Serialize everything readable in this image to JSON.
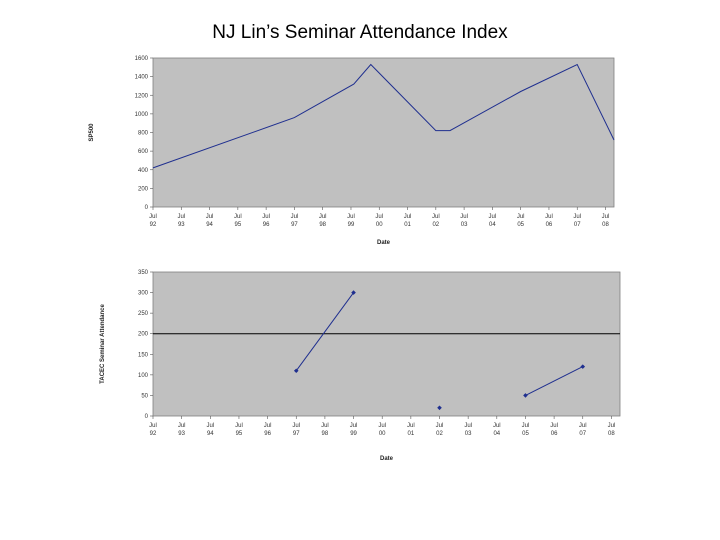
{
  "page": {
    "title": "NJ Lin’s Seminar Attendance Index"
  },
  "chart_data": [
    {
      "id": "sp500",
      "type": "line",
      "xlabel": "Date",
      "ylabel": "SP500",
      "ylim": [
        0,
        1600
      ],
      "yticks": [
        0,
        200,
        400,
        600,
        800,
        1000,
        1200,
        1400,
        1600
      ],
      "xlim": [
        1992.5,
        2008.8
      ],
      "xticks": [
        {
          "x": 1992.5,
          "line1": "Jul",
          "line2": "92"
        },
        {
          "x": 1993.5,
          "line1": "Jul",
          "line2": "93"
        },
        {
          "x": 1994.5,
          "line1": "Jul",
          "line2": "94"
        },
        {
          "x": 1995.5,
          "line1": "Jul",
          "line2": "95"
        },
        {
          "x": 1996.5,
          "line1": "Jul",
          "line2": "96"
        },
        {
          "x": 1997.5,
          "line1": "Jul",
          "line2": "97"
        },
        {
          "x": 1998.5,
          "line1": "Jul",
          "line2": "98"
        },
        {
          "x": 1999.5,
          "line1": "Jul",
          "line2": "99"
        },
        {
          "x": 2000.5,
          "line1": "Jul",
          "line2": "00"
        },
        {
          "x": 2001.5,
          "line1": "Jul",
          "line2": "01"
        },
        {
          "x": 2002.5,
          "line1": "Jul",
          "line2": "02"
        },
        {
          "x": 2003.5,
          "line1": "Jul",
          "line2": "03"
        },
        {
          "x": 2004.5,
          "line1": "Jul",
          "line2": "04"
        },
        {
          "x": 2005.5,
          "line1": "Jul",
          "line2": "05"
        },
        {
          "x": 2006.5,
          "line1": "Jul",
          "line2": "06"
        },
        {
          "x": 2007.5,
          "line1": "Jul",
          "line2": "07"
        },
        {
          "x": 2008.5,
          "line1": "Jul",
          "line2": "08"
        }
      ],
      "series": [
        {
          "color": "#1f2f8f",
          "marker": "none",
          "points": [
            {
              "x": 1992.5,
              "y": 420
            },
            {
              "x": 1997.5,
              "y": 960
            },
            {
              "x": 1999.6,
              "y": 1320
            },
            {
              "x": 2000.2,
              "y": 1530
            },
            {
              "x": 2002.5,
              "y": 820
            },
            {
              "x": 2003.0,
              "y": 820
            },
            {
              "x": 2005.5,
              "y": 1240
            },
            {
              "x": 2007.5,
              "y": 1530
            },
            {
              "x": 2008.8,
              "y": 720
            }
          ]
        }
      ],
      "reference_lines": [],
      "plot_bg": "#c0c0c0",
      "grid": false
    },
    {
      "id": "attendance",
      "type": "line",
      "xlabel": "Date",
      "ylabel": "TACEC Seminar Attendance",
      "ylim": [
        0,
        350
      ],
      "yticks": [
        0,
        50,
        100,
        150,
        200,
        250,
        300,
        350
      ],
      "xlim": [
        1992.5,
        2008.8
      ],
      "xticks": [
        {
          "x": 1992.5,
          "line1": "Jul",
          "line2": "92"
        },
        {
          "x": 1993.5,
          "line1": "Jul",
          "line2": "93"
        },
        {
          "x": 1994.5,
          "line1": "Jul",
          "line2": "94"
        },
        {
          "x": 1995.5,
          "line1": "Jul",
          "line2": "95"
        },
        {
          "x": 1996.5,
          "line1": "Jul",
          "line2": "96"
        },
        {
          "x": 1997.5,
          "line1": "Jul",
          "line2": "97"
        },
        {
          "x": 1998.5,
          "line1": "Jul",
          "line2": "98"
        },
        {
          "x": 1999.5,
          "line1": "Jul",
          "line2": "99"
        },
        {
          "x": 2000.5,
          "line1": "Jul",
          "line2": "00"
        },
        {
          "x": 2001.5,
          "line1": "Jul",
          "line2": "01"
        },
        {
          "x": 2002.5,
          "line1": "Jul",
          "line2": "02"
        },
        {
          "x": 2003.5,
          "line1": "Jul",
          "line2": "03"
        },
        {
          "x": 2004.5,
          "line1": "Jul",
          "line2": "04"
        },
        {
          "x": 2005.5,
          "line1": "Jul",
          "line2": "05"
        },
        {
          "x": 2006.5,
          "line1": "Jul",
          "line2": "06"
        },
        {
          "x": 2007.5,
          "line1": "Jul",
          "line2": "07"
        },
        {
          "x": 2008.5,
          "line1": "Jul",
          "line2": "08"
        }
      ],
      "series": [
        {
          "color": "#1f2f8f",
          "marker": "diamond",
          "segments": [
            [
              {
                "x": 1997.5,
                "y": 110
              },
              {
                "x": 1999.5,
                "y": 300
              }
            ],
            [
              {
                "x": 2002.5,
                "y": 20
              }
            ],
            [
              {
                "x": 2005.5,
                "y": 50
              },
              {
                "x": 2007.5,
                "y": 120
              }
            ]
          ]
        }
      ],
      "reference_lines": [
        {
          "y": 200,
          "color": "#000000"
        }
      ],
      "plot_bg": "#c0c0c0",
      "grid": false
    }
  ]
}
